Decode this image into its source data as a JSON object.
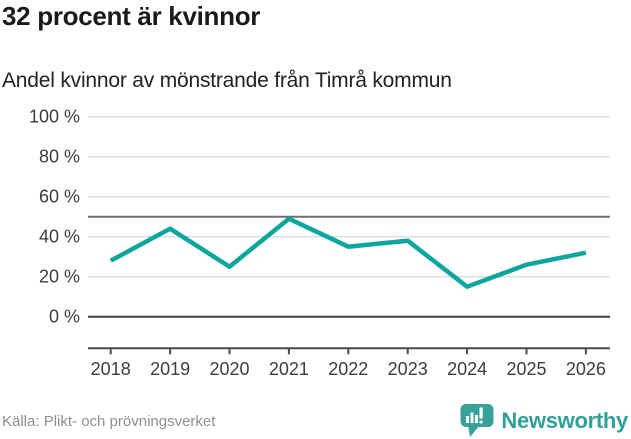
{
  "header": {
    "title": "32 procent är kvinnor",
    "subtitle": "Andel kvinnor av mönstrande från Timrå kommun"
  },
  "footer": {
    "source": "Källa: Plikt- och prövningsverket",
    "brand": "Newsworthy"
  },
  "colors": {
    "line": "#0ca69e",
    "grid": "#dcdcdc",
    "reference_line": "#6e6e6e",
    "zero_line": "#3f3f3f",
    "axis": "#4a4a4a",
    "tick_label": "#3d3d3d",
    "title_text": "#1a1a1a",
    "source_text": "#8f8f8f",
    "brand_teal": "#31a09a",
    "logo_fill": "#3aa09b"
  },
  "chart_data": {
    "type": "line",
    "title": "32 procent är kvinnor",
    "subtitle": "Andel kvinnor av mönstrande från Timrå kommun",
    "x": [
      2018,
      2019,
      2020,
      2021,
      2022,
      2023,
      2024,
      2025,
      2026
    ],
    "series": [
      {
        "name": "Andel kvinnor av mönstrande",
        "values": [
          28,
          44,
          25,
          49,
          35,
          38,
          15,
          26,
          32
        ]
      }
    ],
    "unit": "%",
    "yticks": [
      0,
      20,
      40,
      60,
      80,
      100
    ],
    "ytick_labels": [
      "0 %",
      "20 %",
      "40 %",
      "60 %",
      "80 %",
      "100 %"
    ],
    "ylim": [
      0,
      100
    ],
    "reference_line": 50,
    "grid": "horizontal",
    "legend": "none",
    "latest_value_label": "32"
  }
}
